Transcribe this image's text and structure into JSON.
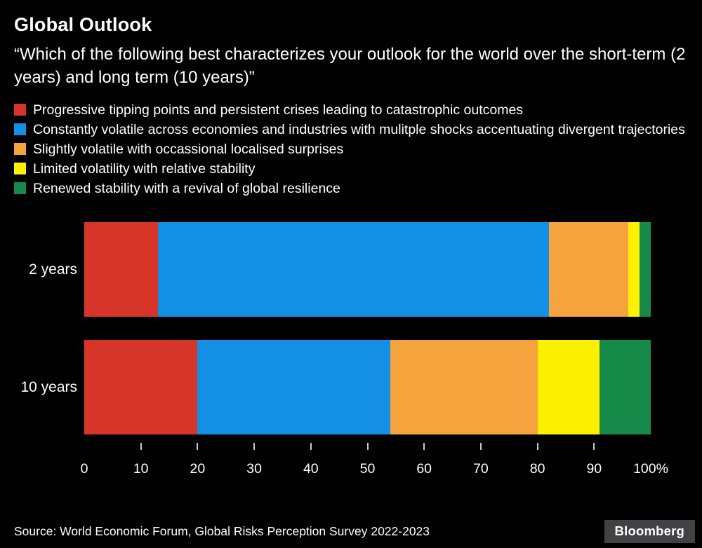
{
  "title": "Global Outlook",
  "subtitle": "“Which of the following best characterizes your outlook for the world over the short-term (2 years) and long term (10 years)”",
  "chart_data": {
    "type": "bar",
    "stacked": true,
    "orientation": "horizontal",
    "title": "Global Outlook",
    "categories": [
      "2 years",
      "10 years"
    ],
    "series": [
      {
        "name": "Progressive tipping points and persistent crises leading to catastrophic outcomes",
        "color": "#d8352a",
        "values": [
          13,
          20
        ]
      },
      {
        "name": "Constantly volatile across economies and industries with mulitple shocks accentuating divergent trajectories",
        "color": "#1390e4",
        "values": [
          69,
          34
        ]
      },
      {
        "name": "Slightly volatile with occassional localised surprises",
        "color": "#f5a33c",
        "values": [
          14,
          26
        ]
      },
      {
        "name": "Limited volatility with relative stability",
        "color": "#fdf000",
        "values": [
          2,
          11
        ]
      },
      {
        "name": "Renewed stability with a revival of global resilience",
        "color": "#168a49",
        "values": [
          2,
          9
        ]
      }
    ],
    "xlim": [
      0,
      100
    ],
    "ticks": [
      0,
      10,
      20,
      30,
      40,
      50,
      60,
      70,
      80,
      90,
      100
    ],
    "tick_labels": [
      "0",
      "10",
      "20",
      "30",
      "40",
      "50",
      "60",
      "70",
      "80",
      "90",
      "100%"
    ],
    "legend_position": "top",
    "grid": false
  },
  "footer": {
    "source": "Source: World Economic Forum, Global Risks Perception Survey 2022-2023",
    "brand": "Bloomberg"
  }
}
